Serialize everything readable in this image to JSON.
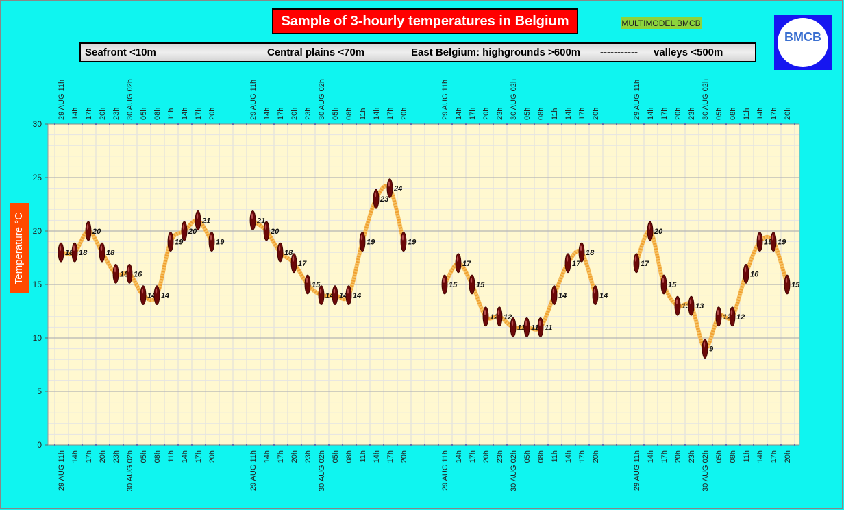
{
  "header": {
    "title": "Sample of 3-hourly temperatures in Belgium",
    "model_badge": "MULTIMODEL BMCB",
    "logo_text": "BMCB"
  },
  "regions": {
    "seafront": "Seafront <10m",
    "central": "Central plains <70m",
    "east": "East Belgium: highgrounds >600m",
    "separator": "-----------",
    "valleys": "valleys <500m"
  },
  "colors": {
    "background": "#0ff5f0",
    "plot_area": "#fff8d0",
    "line": "#f0a030",
    "marker": "#6a0808",
    "title_bg": "#ff0000"
  },
  "chart_data": {
    "type": "line",
    "ylabel": "Temperature °C",
    "ylim": [
      0,
      30
    ],
    "yticks": [
      0,
      5,
      10,
      15,
      20,
      25,
      30
    ],
    "grid": true,
    "x_tick_labels": [
      "29 AUG 11h",
      "14h",
      "17h",
      "20h",
      "23h",
      "30 AUG 02h",
      "05h",
      "08h",
      "11h",
      "14h",
      "17h",
      "20h"
    ],
    "bottom_tick_labels": [
      "29 AUG  11h",
      "14h",
      "17h",
      "20h",
      "23h",
      "30 AUG 02h",
      "05h",
      "08h",
      "11h",
      "14h",
      "17h",
      "20h"
    ],
    "series": [
      {
        "region": "seafront",
        "values": [
          18,
          18,
          20,
          18,
          16,
          16,
          14,
          14,
          19,
          20,
          21,
          19
        ]
      },
      {
        "region": "central",
        "values": [
          21,
          20,
          18,
          17,
          15,
          14,
          14,
          14,
          19,
          23,
          24,
          19
        ]
      },
      {
        "region": "east",
        "values": [
          15,
          17,
          15,
          12,
          12,
          11,
          11,
          11,
          14,
          17,
          18,
          14
        ]
      },
      {
        "region": "valleys",
        "values": [
          17,
          20,
          15,
          13,
          13,
          9,
          12,
          12,
          16,
          19,
          19,
          15
        ]
      }
    ]
  }
}
